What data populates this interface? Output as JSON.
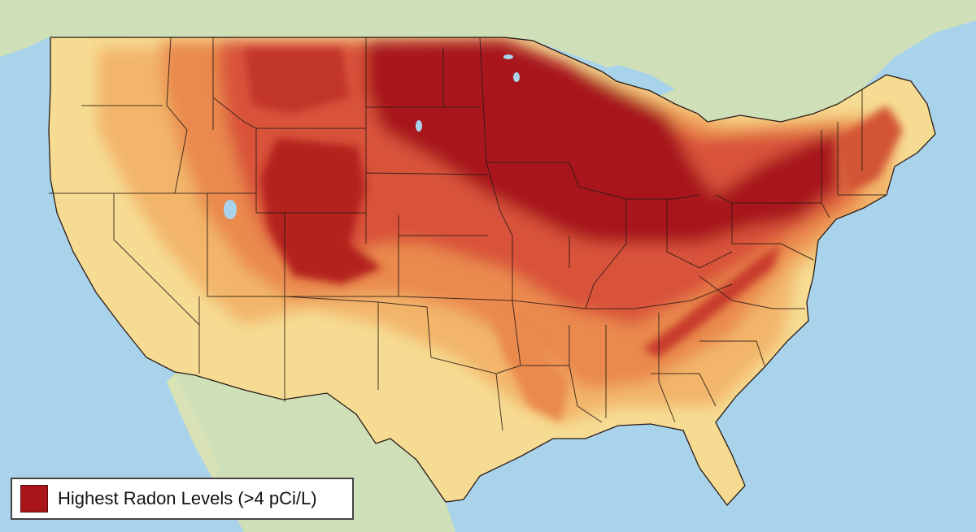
{
  "legend": {
    "label": "Highest Radon Levels (>4 pCi/L)",
    "color": "#a8161a"
  },
  "colors": {
    "water": "#a9d3ea",
    "land_foreign": "#cfdfb8",
    "low": "#f6dc93",
    "moderate_low": "#f2b56b",
    "moderate": "#ea8a4d",
    "high": "#d9533a",
    "highest": "#a8161a",
    "border": "#2a1a14"
  }
}
